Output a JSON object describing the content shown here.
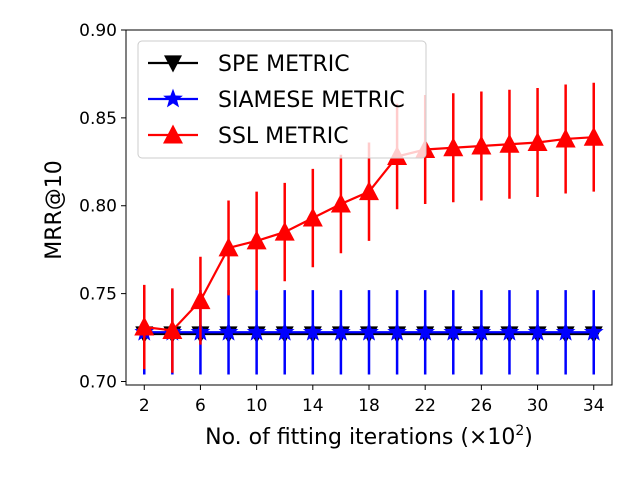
{
  "chart_data": {
    "type": "line",
    "title": "",
    "xlabel": "No. of fitting iterations (×10",
    "xlabel_sup": "2",
    "xlabel_close": ")",
    "ylabel": "MRR@10",
    "xlim": [
      0.7,
      35.3
    ],
    "ylim": [
      0.698,
      0.9
    ],
    "x_ticks": [
      2,
      6,
      10,
      14,
      18,
      22,
      26,
      30,
      34
    ],
    "x_tick_labels": [
      "2",
      "6",
      "10",
      "14",
      "18",
      "22",
      "26",
      "30",
      "34"
    ],
    "y_ticks": [
      0.7,
      0.75,
      0.8,
      0.85,
      0.9
    ],
    "y_tick_labels": [
      "0.70",
      "0.75",
      "0.80",
      "0.85",
      "0.90"
    ],
    "legend_position": "top-left",
    "x": [
      2,
      4,
      6,
      8,
      10,
      12,
      14,
      16,
      18,
      20,
      22,
      24,
      26,
      28,
      30,
      32,
      34
    ],
    "series": [
      {
        "name": "SPE METRIC",
        "color": "#000000",
        "marker": "triangle-down",
        "values": [
          0.727,
          0.727,
          0.727,
          0.727,
          0.727,
          0.727,
          0.727,
          0.727,
          0.727,
          0.727,
          0.727,
          0.727,
          0.727,
          0.727,
          0.727,
          0.727,
          0.727
        ],
        "errors": [
          0.003,
          0.003,
          0.003,
          0.003,
          0.003,
          0.003,
          0.003,
          0.003,
          0.003,
          0.003,
          0.003,
          0.003,
          0.003,
          0.003,
          0.003,
          0.003,
          0.003
        ]
      },
      {
        "name": "SIAMESE METRIC",
        "color": "#0000ff",
        "marker": "star",
        "values": [
          0.728,
          0.728,
          0.728,
          0.728,
          0.728,
          0.728,
          0.728,
          0.728,
          0.728,
          0.728,
          0.728,
          0.728,
          0.728,
          0.728,
          0.728,
          0.728,
          0.728
        ],
        "errors": [
          0.024,
          0.024,
          0.024,
          0.024,
          0.024,
          0.024,
          0.024,
          0.024,
          0.024,
          0.024,
          0.024,
          0.024,
          0.024,
          0.024,
          0.024,
          0.024,
          0.024
        ]
      },
      {
        "name": "SSL METRIC",
        "color": "#ff0000",
        "marker": "triangle-up",
        "values": [
          0.731,
          0.729,
          0.746,
          0.776,
          0.78,
          0.785,
          0.793,
          0.801,
          0.808,
          0.828,
          0.832,
          0.833,
          0.834,
          0.835,
          0.836,
          0.838,
          0.839
        ],
        "errors": [
          0.024,
          0.024,
          0.025,
          0.027,
          0.028,
          0.028,
          0.028,
          0.028,
          0.028,
          0.03,
          0.031,
          0.031,
          0.031,
          0.031,
          0.031,
          0.031,
          0.031
        ]
      }
    ]
  }
}
